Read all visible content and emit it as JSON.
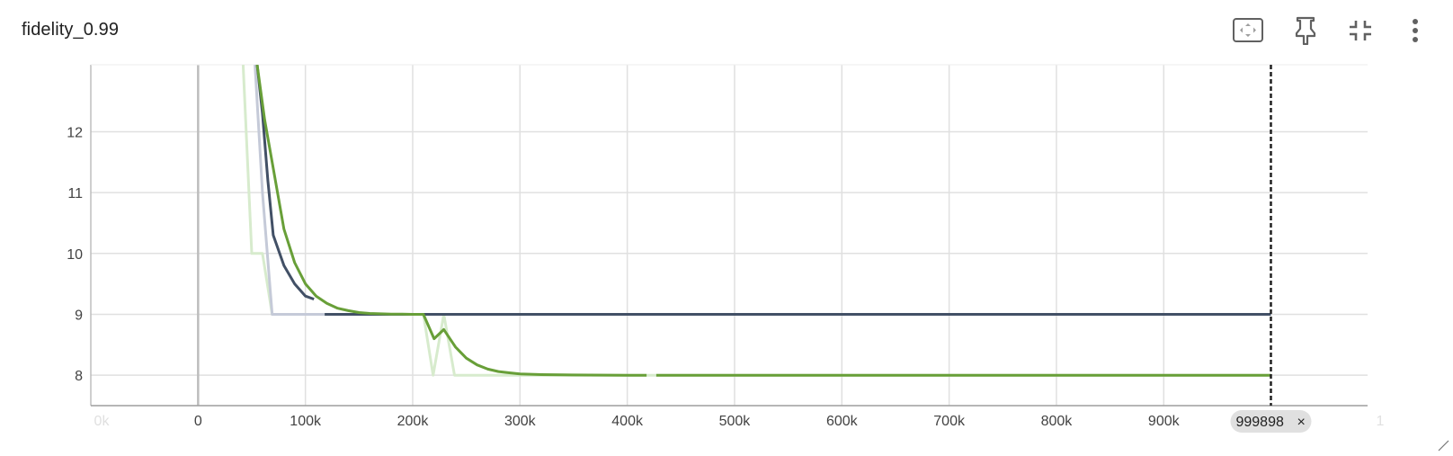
{
  "card": {
    "title": "fidelity_0.99",
    "toolbar": [
      {
        "name": "fit-domain-icon"
      },
      {
        "name": "pin-icon"
      },
      {
        "name": "collapse-icon"
      },
      {
        "name": "more-vert-icon"
      }
    ]
  },
  "chart_data": {
    "type": "line",
    "title": "fidelity_0.99",
    "xlabel": "",
    "ylabel": "",
    "xlim": [
      -100000,
      1090000
    ],
    "ylim": [
      7.5,
      13.1
    ],
    "grid": true,
    "x_ticks": [
      0,
      100000,
      200000,
      300000,
      400000,
      500000,
      600000,
      700000,
      800000,
      900000
    ],
    "x_tick_labels": [
      "0",
      "100k",
      "200k",
      "300k",
      "400k",
      "500k",
      "600k",
      "700k",
      "800k",
      "900k"
    ],
    "x_edge_labels": [
      "0k",
      "1"
    ],
    "y_ticks": [
      8,
      9,
      10,
      11,
      12
    ],
    "y_tick_labels": [
      "8",
      "9",
      "10",
      "11",
      "12"
    ],
    "cursor": {
      "x": 999898,
      "label": "999898",
      "close": "×"
    },
    "series": [
      {
        "color": "#d7ebcd",
        "points": [
          [
            42000,
            13.1
          ],
          [
            50000,
            10
          ],
          [
            60000,
            10
          ],
          [
            69000,
            9
          ],
          [
            200000,
            9
          ],
          [
            210000,
            9
          ],
          [
            219000,
            8
          ],
          [
            229000,
            9
          ],
          [
            239000,
            8
          ],
          [
            999898,
            8
          ]
        ]
      },
      {
        "color": "#c5cad8",
        "points": [
          [
            53000,
            13.1
          ],
          [
            60000,
            11
          ],
          [
            69000,
            9
          ],
          [
            118000,
            9
          ]
        ]
      },
      {
        "color": "#425066",
        "points": [
          [
            55000,
            13.1
          ],
          [
            60000,
            12.3
          ],
          [
            65000,
            11.2
          ],
          [
            70000,
            10.3
          ],
          [
            80000,
            9.8
          ],
          [
            90000,
            9.5
          ],
          [
            100000,
            9.3
          ],
          [
            108000,
            9.25
          ]
        ]
      },
      {
        "color": "#425066",
        "points": [
          [
            118000,
            9
          ],
          [
            999898,
            9
          ]
        ]
      },
      {
        "color": "#689f38",
        "points": [
          [
            55000,
            13.1
          ],
          [
            62000,
            12.2
          ],
          [
            70000,
            11.4
          ],
          [
            80000,
            10.4
          ],
          [
            90000,
            9.85
          ],
          [
            100000,
            9.5
          ],
          [
            110000,
            9.3
          ],
          [
            120000,
            9.18
          ],
          [
            130000,
            9.1
          ],
          [
            140000,
            9.06
          ],
          [
            150000,
            9.03
          ],
          [
            160000,
            9.015
          ],
          [
            170000,
            9.008
          ],
          [
            180000,
            9.004
          ],
          [
            190000,
            9.002
          ],
          [
            200000,
            9.0
          ],
          [
            210000,
            9.0
          ],
          [
            220000,
            8.6
          ],
          [
            229000,
            8.75
          ],
          [
            240000,
            8.46
          ],
          [
            250000,
            8.28
          ],
          [
            260000,
            8.17
          ],
          [
            270000,
            8.1
          ],
          [
            280000,
            8.06
          ],
          [
            290000,
            8.04
          ],
          [
            300000,
            8.02
          ],
          [
            320000,
            8.01
          ],
          [
            340000,
            8.005
          ],
          [
            400000,
            8.0
          ],
          [
            418000,
            8.0
          ]
        ]
      },
      {
        "color": "#689f38",
        "points": [
          [
            427000,
            8.0
          ],
          [
            999898,
            8.0
          ]
        ]
      }
    ]
  }
}
